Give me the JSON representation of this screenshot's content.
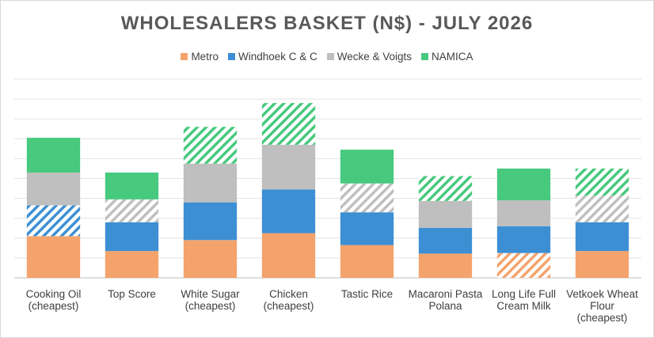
{
  "chart_data": {
    "type": "bar",
    "stacked": true,
    "title": "WHOLESALERS BASKET (N$) - JULY 2026",
    "legend_position": "top",
    "grid": true,
    "ylim": [
      0,
      10
    ],
    "ytick_step": 1,
    "categories": [
      [
        "Cooking Oil",
        "(cheapest)"
      ],
      [
        "Top Score"
      ],
      [
        "White Sugar",
        "(cheapest)"
      ],
      [
        "Chicken",
        "(cheapest)"
      ],
      [
        "Tastic Rice"
      ],
      [
        "Macaroni Pasta",
        "Polana"
      ],
      [
        "Long Life Full",
        "Cream Milk"
      ],
      [
        "Vetkoek Wheat",
        "Flour",
        "(cheapest)"
      ]
    ],
    "series": [
      {
        "name": "Metro",
        "color": "#F4A36C",
        "values": [
          2.1,
          1.35,
          1.9,
          2.25,
          1.65,
          1.22,
          1.25,
          1.35
        ],
        "hatched": [
          false,
          false,
          false,
          false,
          false,
          false,
          true,
          false
        ]
      },
      {
        "name": "Windhoek C & C",
        "color": "#3D8FD4",
        "values": [
          1.55,
          1.45,
          1.9,
          2.2,
          1.65,
          1.3,
          1.35,
          1.45
        ],
        "hatched": [
          true,
          false,
          false,
          false,
          false,
          false,
          false,
          false
        ]
      },
      {
        "name": "Wecke & Voigts",
        "color": "#BFBFBF",
        "values": [
          1.65,
          1.15,
          1.95,
          2.25,
          1.45,
          1.35,
          1.3,
          1.35
        ],
        "hatched": [
          false,
          true,
          false,
          false,
          true,
          false,
          false,
          true
        ]
      },
      {
        "name": "NAMICA",
        "color": "#47C97E",
        "values": [
          1.75,
          1.35,
          1.85,
          2.1,
          1.7,
          1.25,
          1.6,
          1.35
        ],
        "hatched": [
          false,
          false,
          true,
          true,
          false,
          true,
          false,
          true
        ]
      }
    ]
  }
}
